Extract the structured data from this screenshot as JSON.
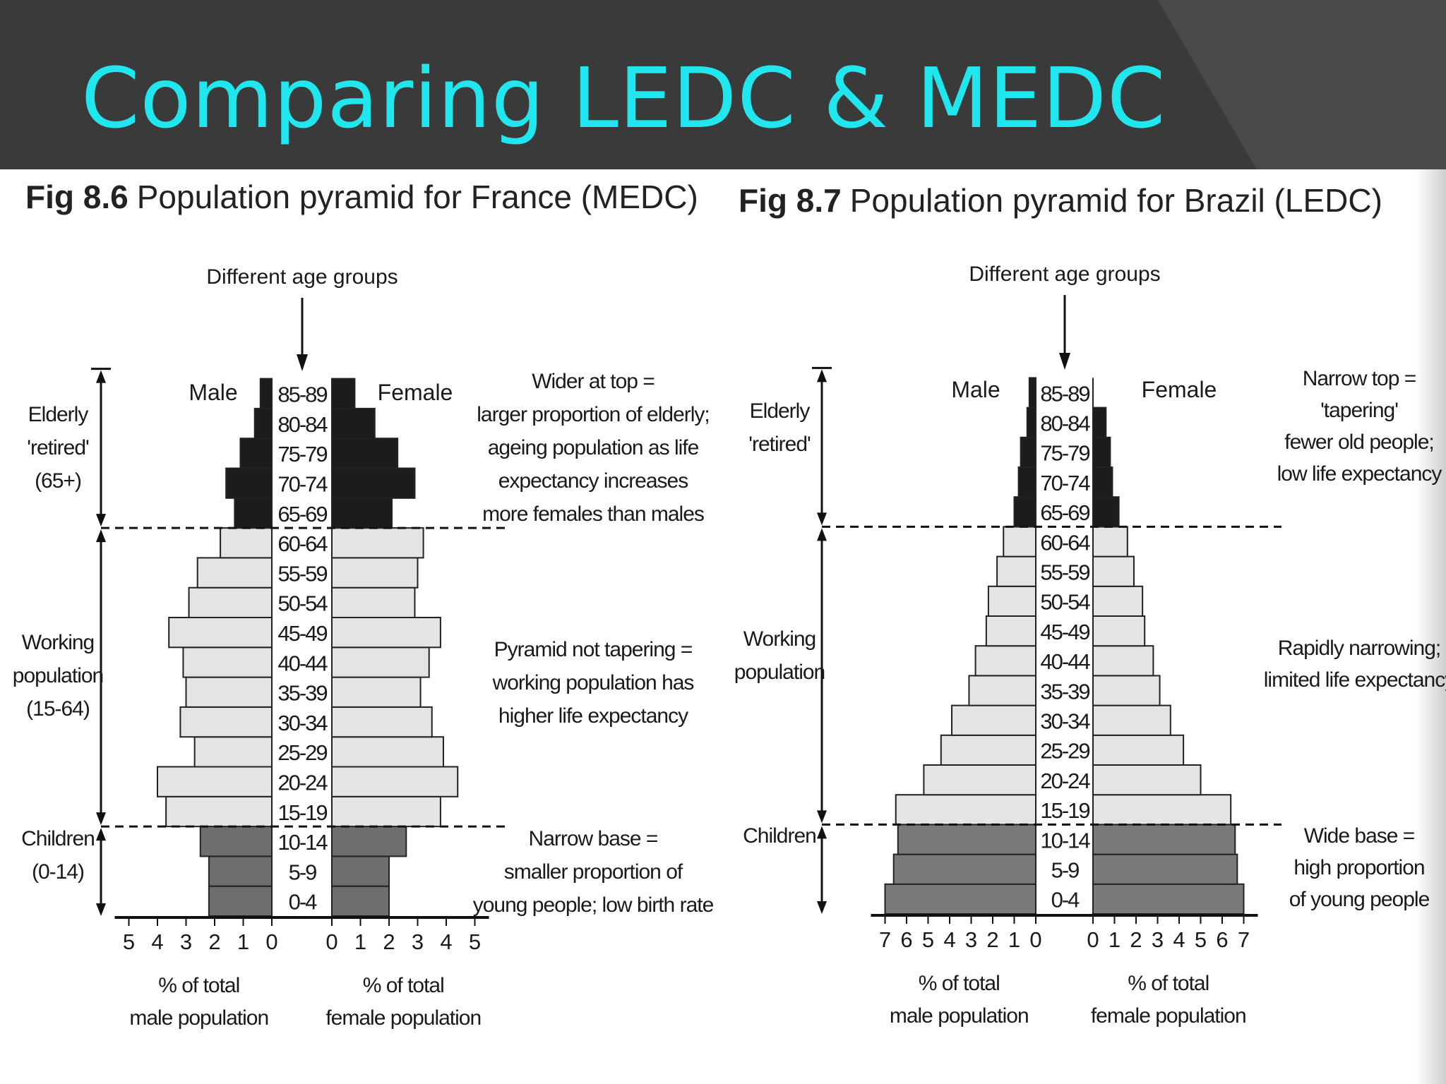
{
  "slide": {
    "title": "Comparing LEDC & MEDC",
    "colors": {
      "header_bg": "#3a3a3a",
      "title_color": "#22e6ee"
    }
  },
  "chart_data": [
    {
      "type": "bar",
      "subtype": "population-pyramid",
      "fig_label": "Fig 8.6",
      "title": "Population pyramid for France (MEDC)",
      "center_label": "Different age groups",
      "male_label": "Male",
      "female_label": "Female",
      "age_groups": [
        "0-4",
        "5-9",
        "10-14",
        "15-19",
        "20-24",
        "25-29",
        "30-34",
        "35-39",
        "40-44",
        "45-49",
        "50-54",
        "55-59",
        "60-64",
        "65-69",
        "70-74",
        "75-79",
        "80-84",
        "85-89"
      ],
      "male": [
        2.2,
        2.2,
        2.5,
        3.7,
        4.0,
        2.7,
        3.2,
        3.0,
        3.1,
        3.6,
        2.9,
        2.6,
        1.8,
        1.3,
        1.6,
        1.1,
        0.6,
        0.4
      ],
      "female": [
        2.0,
        2.0,
        2.6,
        3.8,
        4.4,
        3.9,
        3.5,
        3.1,
        3.4,
        3.8,
        2.9,
        3.0,
        3.2,
        2.1,
        2.9,
        2.3,
        1.5,
        0.8
      ],
      "axis_max": 5,
      "ticks": [
        "5",
        "4",
        "3",
        "2",
        "1",
        "0"
      ],
      "ticks_right": [
        "0",
        "1",
        "2",
        "3",
        "4",
        "5"
      ],
      "xlabel_left": [
        "% of total",
        "male population"
      ],
      "xlabel_right": [
        "% of total",
        "female population"
      ],
      "groups": [
        {
          "lines": [
            "Elderly",
            "'retired'",
            "(65+)"
          ],
          "from": "65-69",
          "to": "85-89",
          "shade": "#1c1c1c"
        },
        {
          "lines": [
            "Working",
            "population",
            "(15-64)"
          ],
          "from": "15-19",
          "to": "60-64",
          "shade": "#e4e4e4"
        },
        {
          "lines": [
            "Children",
            "(0-14)"
          ],
          "from": "0-4",
          "to": "10-14",
          "shade": "#6e6e6e"
        }
      ],
      "annotations": [
        {
          "lines": [
            "Wider at top =",
            "larger proportion of elderly;",
            "ageing population as life",
            "expectancy increases",
            "more females than males"
          ]
        },
        {
          "lines": [
            "Pyramid not tapering =",
            "working population has",
            "higher life expectancy"
          ]
        },
        {
          "lines": [
            "Narrow base =",
            "smaller proportion of",
            "young people; low birth rate"
          ]
        }
      ]
    },
    {
      "type": "bar",
      "subtype": "population-pyramid",
      "fig_label": "Fig 8.7",
      "title": "Population pyramid for Brazil (LEDC)",
      "center_label": "Different age groups",
      "male_label": "Male",
      "female_label": "Female",
      "age_groups": [
        "0-4",
        "5-9",
        "10-14",
        "15-19",
        "20-24",
        "25-29",
        "30-34",
        "35-39",
        "40-44",
        "45-49",
        "50-54",
        "55-59",
        "60-64",
        "65-69",
        "70-74",
        "75-79",
        "80-84",
        "85-89"
      ],
      "male": [
        7.0,
        6.6,
        6.4,
        6.5,
        5.2,
        4.4,
        3.9,
        3.1,
        2.8,
        2.3,
        2.2,
        1.8,
        1.5,
        1.0,
        0.8,
        0.7,
        0.4,
        0.3
      ],
      "female": [
        7.0,
        6.7,
        6.6,
        6.4,
        5.0,
        4.2,
        3.6,
        3.1,
        2.8,
        2.4,
        2.3,
        1.9,
        1.6,
        1.2,
        0.9,
        0.8,
        0.6,
        0.0
      ],
      "axis_max": 7,
      "ticks": [
        "7",
        "6",
        "5",
        "4",
        "3",
        "2",
        "1",
        "0"
      ],
      "ticks_right": [
        "0",
        "1",
        "2",
        "3",
        "4",
        "5",
        "6",
        "7"
      ],
      "xlabel_left": [
        "% of total",
        "male population"
      ],
      "xlabel_right": [
        "% of total",
        "female population"
      ],
      "groups": [
        {
          "lines": [
            "Elderly",
            "'retired'"
          ],
          "from": "65-69",
          "to": "85-89",
          "shade": "#1c1c1c"
        },
        {
          "lines": [
            "Working",
            "population"
          ],
          "from": "15-19",
          "to": "60-64",
          "shade": "#e4e4e4"
        },
        {
          "lines": [
            "Children"
          ],
          "from": "0-4",
          "to": "10-14",
          "shade": "#7a7a7a"
        }
      ],
      "annotations": [
        {
          "lines": [
            "Narrow top =",
            "'tapering'",
            "fewer old people;",
            "low life expectancy"
          ]
        },
        {
          "lines": [
            "Rapidly narrowing;",
            "limited life expectancy"
          ]
        },
        {
          "lines": [
            "Wide base =",
            "high proportion",
            "of young people"
          ]
        }
      ]
    }
  ]
}
